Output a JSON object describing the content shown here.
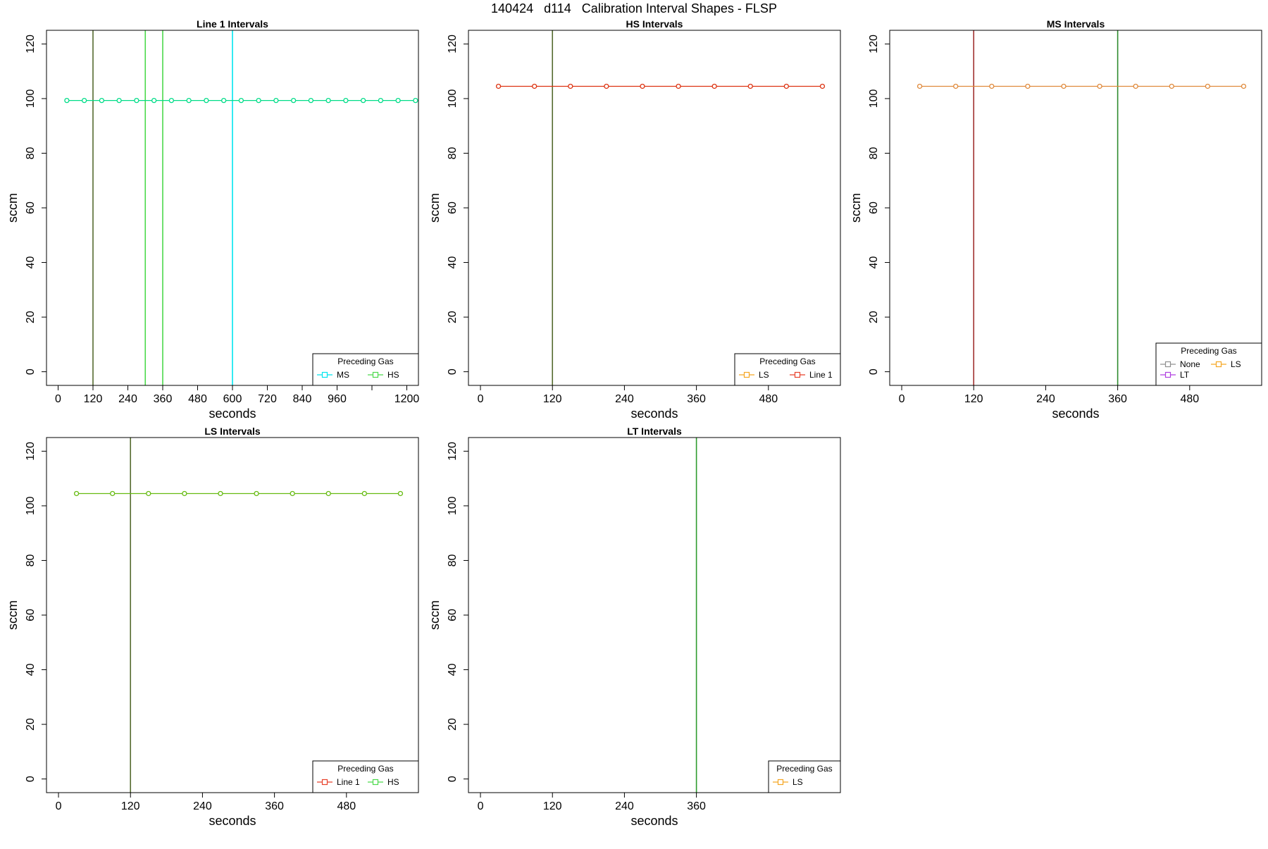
{
  "figure": {
    "title": "140424   d114   Calibration Interval Shapes - FLSP"
  },
  "chart_data": [
    {
      "type": "line",
      "title": "Line 1 Intervals",
      "xlabel": "seconds",
      "ylabel": "sccm",
      "xlim": [
        -40,
        1240
      ],
      "ylim": [
        -5,
        125
      ],
      "xticks": [
        0,
        120,
        240,
        360,
        480,
        600,
        720,
        840,
        960,
        1080,
        1200
      ],
      "xtick_labels": [
        "0",
        "120",
        "240",
        "360",
        "480",
        "600",
        "720",
        "840",
        "960",
        "",
        "1200"
      ],
      "yticks": [
        0,
        20,
        40,
        60,
        80,
        100,
        120
      ],
      "vlines": [
        {
          "x": 120,
          "color": "#556b2f"
        },
        {
          "x": 300,
          "color": "#4cd94c"
        },
        {
          "x": 360,
          "color": "#4cd94c"
        },
        {
          "x": 600,
          "color": "#00e5ee"
        }
      ],
      "series": [
        {
          "color": "#00dd88",
          "x": [
            30,
            90,
            150,
            210,
            270,
            330,
            390,
            450,
            510,
            570,
            630,
            690,
            750,
            810,
            870,
            930,
            990,
            1050,
            1110,
            1170,
            1230
          ],
          "y": [
            99.3,
            99.3,
            99.3,
            99.3,
            99.3,
            99.3,
            99.3,
            99.3,
            99.3,
            99.3,
            99.3,
            99.3,
            99.3,
            99.3,
            99.3,
            99.3,
            99.3,
            99.3,
            99.3,
            99.3,
            99.3
          ]
        }
      ],
      "legend": {
        "title": "Preceding Gas",
        "position": "bottom-right",
        "columns": 2,
        "entries": [
          {
            "label": "MS",
            "color": "#00e5ee"
          },
          {
            "label": "HS",
            "color": "#4cd94c"
          }
        ]
      }
    },
    {
      "type": "line",
      "title": "HS Intervals",
      "xlabel": "seconds",
      "ylabel": "sccm",
      "xlim": [
        -20,
        600
      ],
      "ylim": [
        -5,
        125
      ],
      "xticks": [
        0,
        120,
        240,
        360,
        480
      ],
      "xtick_labels": [
        "0",
        "120",
        "240",
        "360",
        "480"
      ],
      "yticks": [
        0,
        20,
        40,
        60,
        80,
        100,
        120
      ],
      "vlines": [
        {
          "x": 120,
          "color": "#556b2f"
        }
      ],
      "series": [
        {
          "color": "#dd3311",
          "x": [
            30,
            90,
            150,
            210,
            270,
            330,
            390,
            450,
            510,
            570
          ],
          "y": [
            104.5,
            104.5,
            104.5,
            104.5,
            104.5,
            104.5,
            104.5,
            104.5,
            104.5,
            104.5
          ]
        }
      ],
      "legend": {
        "title": "Preceding Gas",
        "position": "bottom-right",
        "columns": 2,
        "entries": [
          {
            "label": "LS",
            "color": "#f5a623"
          },
          {
            "label": "Line 1",
            "color": "#e8402a"
          }
        ]
      }
    },
    {
      "type": "line",
      "title": "MS Intervals",
      "xlabel": "seconds",
      "ylabel": "sccm",
      "xlim": [
        -20,
        600
      ],
      "ylim": [
        -5,
        125
      ],
      "xticks": [
        0,
        120,
        240,
        360,
        480
      ],
      "xtick_labels": [
        "0",
        "120",
        "240",
        "360",
        "480"
      ],
      "yticks": [
        0,
        20,
        40,
        60,
        80,
        100,
        120
      ],
      "vlines": [
        {
          "x": 120,
          "color": "#a0302f"
        },
        {
          "x": 360,
          "color": "#2e8b2e"
        }
      ],
      "series": [
        {
          "color": "#e08a3c",
          "x": [
            30,
            90,
            150,
            210,
            270,
            330,
            390,
            450,
            510,
            570
          ],
          "y": [
            104.5,
            104.5,
            104.5,
            104.5,
            104.5,
            104.5,
            104.5,
            104.5,
            104.5,
            104.5
          ]
        }
      ],
      "legend": {
        "title": "Preceding Gas",
        "position": "bottom-right",
        "columns": 2,
        "entries": [
          {
            "label": "None",
            "color": "#909090"
          },
          {
            "label": "LS",
            "color": "#f5a623"
          },
          {
            "label": "LT",
            "color": "#b040e0"
          }
        ]
      }
    },
    {
      "type": "line",
      "title": "LS Intervals",
      "xlabel": "seconds",
      "ylabel": "sccm",
      "xlim": [
        -20,
        600
      ],
      "ylim": [
        -5,
        125
      ],
      "xticks": [
        0,
        120,
        240,
        360,
        480
      ],
      "xtick_labels": [
        "0",
        "120",
        "240",
        "360",
        "480"
      ],
      "yticks": [
        0,
        20,
        40,
        60,
        80,
        100,
        120
      ],
      "vlines": [
        {
          "x": 120,
          "color": "#556b2f"
        }
      ],
      "series": [
        {
          "color": "#66bb11",
          "x": [
            30,
            90,
            150,
            210,
            270,
            330,
            390,
            450,
            510,
            570
          ],
          "y": [
            104.5,
            104.5,
            104.5,
            104.5,
            104.5,
            104.5,
            104.5,
            104.5,
            104.5,
            104.5
          ]
        }
      ],
      "legend": {
        "title": "Preceding Gas",
        "position": "bottom-right",
        "columns": 2,
        "entries": [
          {
            "label": "Line 1",
            "color": "#e8402a"
          },
          {
            "label": "HS",
            "color": "#4cd94c"
          }
        ]
      }
    },
    {
      "type": "line",
      "title": "LT Intervals",
      "xlabel": "seconds",
      "ylabel": "sccm",
      "xlim": [
        -20,
        600
      ],
      "ylim": [
        -5,
        125
      ],
      "xticks": [
        0,
        120,
        240,
        360
      ],
      "xtick_labels": [
        "0",
        "120",
        "240",
        "360"
      ],
      "yticks": [
        0,
        20,
        40,
        60,
        80,
        100,
        120
      ],
      "vlines": [
        {
          "x": 360,
          "color": "#2e9b2e"
        }
      ],
      "series": [],
      "legend": {
        "title": "Preceding Gas",
        "position": "bottom-right",
        "columns": 1,
        "entries": [
          {
            "label": "LS",
            "color": "#f5a623"
          }
        ]
      }
    }
  ]
}
